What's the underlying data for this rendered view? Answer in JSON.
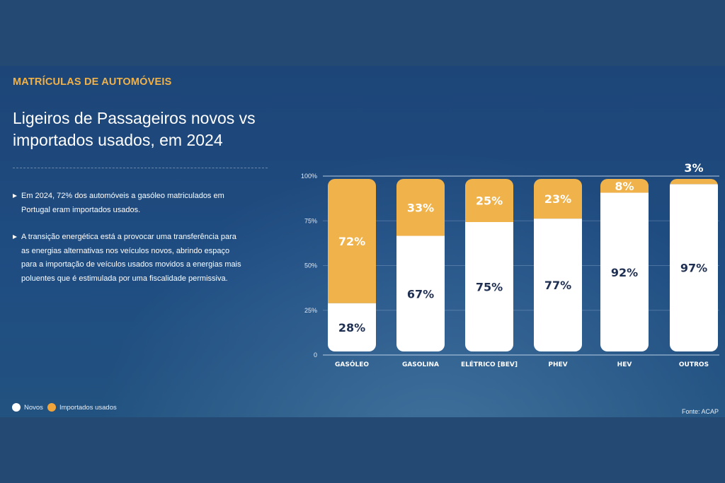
{
  "header": {
    "kicker": "MATRÍCULAS DE AUTOMÓVEIS",
    "title": "Ligeiros de Passageiros novos vs importados usados, em 2024"
  },
  "bullets": [
    "Em 2024, 72% dos automóveis a gasóleo matriculados em Portugal eram importados usados.",
    "A transição energética está a provocar uma transferência para as energias alternativas nos veículos novos, abrindo espaço para a importação de veículos usados movidos a energias mais poluentes que é estimulada por uma fiscalidade permissiva."
  ],
  "legend": {
    "novos": "Novos",
    "importados": "Importados usados"
  },
  "source": "Fonte: ACAP",
  "colors": {
    "novos": "#ffffff",
    "importados": "#f0b24a",
    "label_dark": "#1f2f52"
  },
  "chart_data": {
    "type": "bar",
    "stacked": true,
    "categories": [
      "GASÓLEO",
      "GASOLINA",
      "ELÉTRICO [BEV]",
      "PHEV",
      "HEV",
      "OUTROS"
    ],
    "series": [
      {
        "name": "Novos",
        "values": [
          28,
          67,
          75,
          77,
          92,
          97
        ]
      },
      {
        "name": "Importados usados",
        "values": [
          72,
          33,
          25,
          23,
          8,
          3
        ]
      }
    ],
    "data_labels": [
      [
        "28%",
        "67%",
        "75%",
        "77%",
        "92%",
        "97%"
      ],
      [
        "72%",
        "33%",
        "25%",
        "23%",
        "8%",
        "3%"
      ]
    ],
    "ylim": [
      0,
      100
    ],
    "yticks": [
      "0",
      "25%",
      "50%",
      "75%",
      "100%"
    ],
    "grid": true,
    "legend_position": "bottom-left"
  }
}
